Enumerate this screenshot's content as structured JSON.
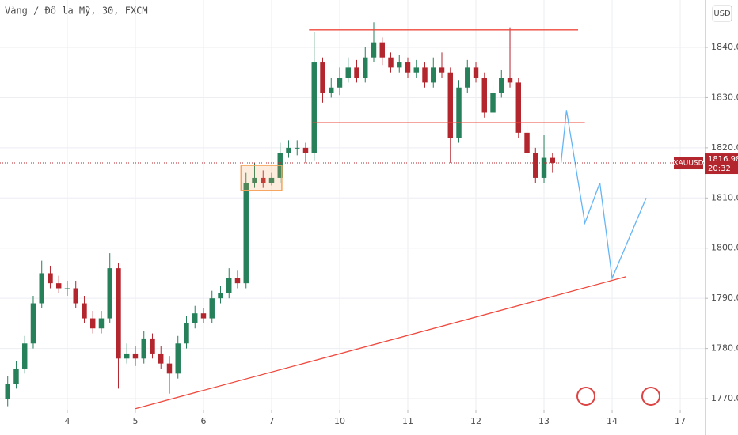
{
  "chart_data": {
    "type": "candlestick",
    "title": "Vàng / Đô la Mỹ, 30, FXCM",
    "currency": "USD",
    "symbol": "XAUUSD",
    "last_price": 1816.98,
    "countdown": "20:32",
    "up_color": "#26805a",
    "down_color": "#b3262e",
    "grid": true,
    "xlim": [
      -0.988,
      9.36
    ],
    "ylim": [
      1767.8,
      1849.46
    ],
    "xticks": [
      {
        "value": 0,
        "label": "4"
      },
      {
        "value": 1,
        "label": "5"
      },
      {
        "value": 2,
        "label": "6"
      },
      {
        "value": 3,
        "label": "7"
      },
      {
        "value": 4,
        "label": "10"
      },
      {
        "value": 5,
        "label": "11"
      },
      {
        "value": 6,
        "label": "12"
      },
      {
        "value": 7,
        "label": "13"
      },
      {
        "value": 8,
        "label": "14"
      },
      {
        "value": 9,
        "label": "17"
      }
    ],
    "yticks": [
      {
        "value": 1770,
        "label": "1770.00"
      },
      {
        "value": 1780,
        "label": "1780.00"
      },
      {
        "value": 1790,
        "label": "1790.00"
      },
      {
        "value": 1800,
        "label": "1800.00"
      },
      {
        "value": 1810,
        "label": "1810.00"
      },
      {
        "value": 1820,
        "label": "1820.00"
      },
      {
        "value": 1830,
        "label": "1830.00"
      },
      {
        "value": 1840,
        "label": "1840.00"
      }
    ],
    "x": [
      -0.875,
      -0.75,
      -0.625,
      -0.5,
      -0.375,
      -0.25,
      -0.125,
      0,
      0.125,
      0.25,
      0.375,
      0.5,
      0.625,
      0.75,
      0.875,
      1,
      1.125,
      1.25,
      1.375,
      1.5,
      1.625,
      1.75,
      1.875,
      2,
      2.125,
      2.25,
      2.375,
      2.5,
      2.625,
      2.75,
      2.875,
      3,
      3.125,
      3.25,
      3.375,
      3.5,
      3.625,
      3.75,
      3.875,
      4,
      4.125,
      4.25,
      4.375,
      4.5,
      4.625,
      4.75,
      4.875,
      5,
      5.125,
      5.25,
      5.375,
      5.5,
      5.625,
      5.75,
      5.875,
      6,
      6.125,
      6.25,
      6.375,
      6.5,
      6.625,
      6.75,
      6.875,
      7,
      7.125
    ],
    "open": [
      1770,
      1773,
      1776,
      1781,
      1789,
      1795,
      1793,
      1792,
      1792,
      1789,
      1786,
      1784,
      1786,
      1796,
      1778,
      1779,
      1778,
      1782,
      1779,
      1777,
      1775,
      1781,
      1785,
      1787,
      1786,
      1790,
      1791,
      1794,
      1793,
      1813,
      1814,
      1813,
      1814,
      1819,
      1820,
      1820,
      1819,
      1837,
      1831,
      1832,
      1834,
      1836,
      1834,
      1838,
      1841,
      1838,
      1836,
      1837,
      1835,
      1836,
      1833,
      1836,
      1835,
      1822,
      1832,
      1836,
      1834,
      1827,
      1831,
      1834,
      1833,
      1823,
      1819,
      1814,
      1818
    ],
    "high": [
      1774.5,
      1777.5,
      1782.5,
      1790.5,
      1797.5,
      1796.5,
      1794.5,
      1793.5,
      1793.5,
      1790.5,
      1787.5,
      1787.5,
      1799,
      1797,
      1781,
      1780.5,
      1783.5,
      1783,
      1780.5,
      1778.5,
      1782.5,
      1786.5,
      1788.5,
      1788,
      1791.5,
      1792.5,
      1796,
      1795.5,
      1815,
      1817,
      1815.5,
      1815,
      1821,
      1821.5,
      1821.5,
      1821,
      1843,
      1838,
      1834,
      1836,
      1838,
      1837.5,
      1840,
      1845,
      1842,
      1839,
      1838.5,
      1838,
      1837.5,
      1837,
      1838,
      1839,
      1836,
      1833.5,
      1837.5,
      1837,
      1835,
      1832.5,
      1835.5,
      1844,
      1834,
      1824.5,
      1820,
      1822.5,
      1819
    ],
    "low": [
      1768.5,
      1772,
      1775,
      1780,
      1788,
      1792,
      1791,
      1790.5,
      1788,
      1785,
      1783,
      1783,
      1785,
      1772,
      1777,
      1776.5,
      1777,
      1778,
      1776,
      1771,
      1774,
      1780,
      1784,
      1785,
      1785,
      1789,
      1790,
      1792,
      1792,
      1812,
      1812,
      1812.5,
      1813,
      1818,
      1818.5,
      1817,
      1817.5,
      1829,
      1830,
      1830.5,
      1833,
      1833,
      1833,
      1837,
      1836.5,
      1835,
      1835,
      1834,
      1834,
      1832,
      1832,
      1834,
      1817,
      1821,
      1831,
      1833,
      1826,
      1826,
      1830,
      1832,
      1822,
      1818,
      1813,
      1813,
      1815
    ],
    "close": [
      1773,
      1776,
      1781,
      1789,
      1795,
      1793,
      1792,
      1792,
      1789,
      1786,
      1784,
      1786,
      1796,
      1778,
      1779,
      1778,
      1782,
      1779,
      1777,
      1775,
      1781,
      1785,
      1787,
      1786,
      1790,
      1791,
      1794,
      1793,
      1813,
      1814,
      1813,
      1814,
      1819,
      1820,
      1820,
      1819,
      1837,
      1831,
      1832,
      1834,
      1836,
      1834,
      1838,
      1841,
      1838,
      1836,
      1837,
      1835,
      1836,
      1833,
      1836,
      1835,
      1822,
      1832,
      1836,
      1834,
      1827,
      1831,
      1834,
      1833,
      1823,
      1819,
      1814,
      1818,
      1817
    ],
    "lines": [
      {
        "color": "#f0483c",
        "x": [
          3.55,
          7.5
        ],
        "y": [
          1843.5,
          1843.5
        ]
      },
      {
        "color": "#f0483c",
        "x": [
          3.6,
          7.6
        ],
        "y": [
          1825,
          1825
        ]
      },
      {
        "color": "#f0483c",
        "x": [
          1.0,
          8.2
        ],
        "y": [
          1768,
          1794.3
        ]
      },
      {
        "color": "#64b5f6",
        "x": [
          7.25,
          7.33,
          7.6,
          7.82,
          8.0,
          8.5
        ],
        "y": [
          1817,
          1827.5,
          1805,
          1813,
          1794,
          1810
        ]
      }
    ],
    "box": {
      "color": "#f5a35c",
      "x": [
        2.55,
        3.15
      ],
      "y": [
        1811.5,
        1816.5
      ]
    }
  }
}
